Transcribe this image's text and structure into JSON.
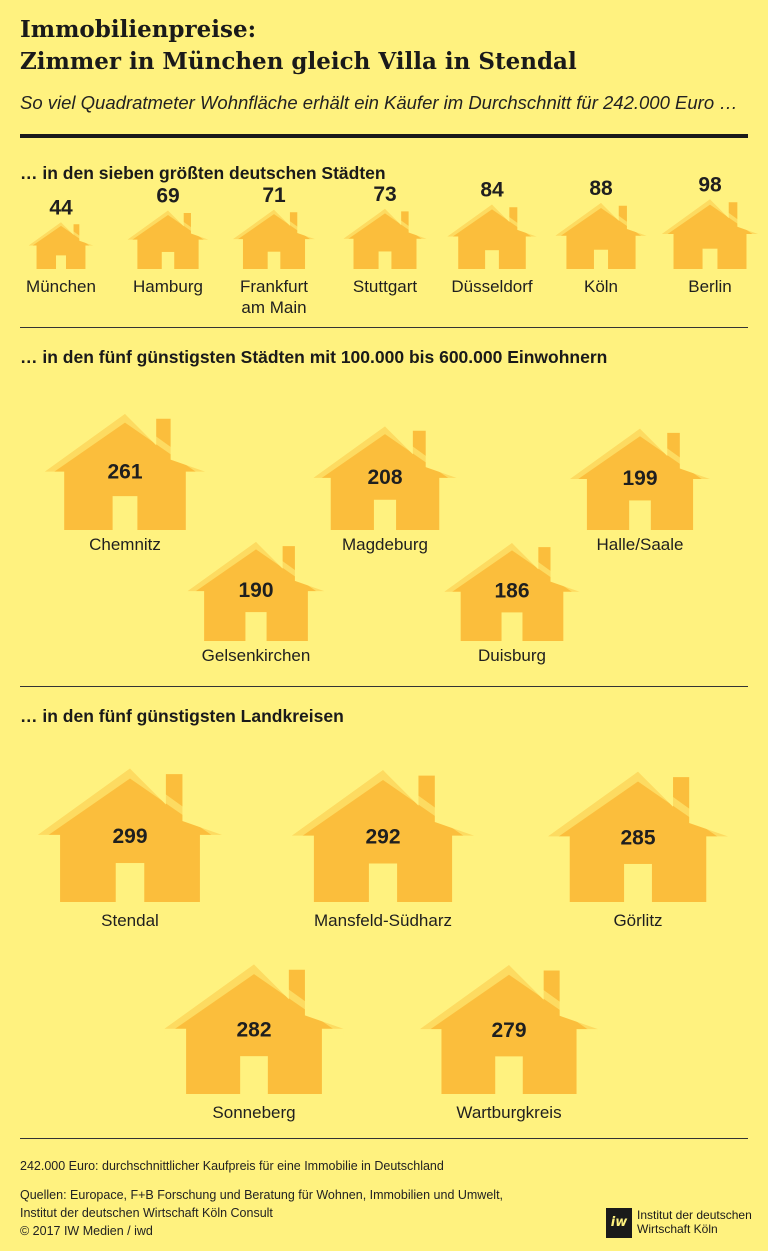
{
  "header": {
    "title_line1": "Immobilienpreise:",
    "title_line2": "Zimmer in München gleich Villa in Stendal",
    "subtitle": "So viel Quadratmeter Wohnfläche erhält ein Käufer im Durchschnitt für 242.000 Euro …"
  },
  "colors": {
    "background": "#fff27f",
    "house_fill": "#fbbe3c",
    "text": "#1f1f1f"
  },
  "chart_data": {
    "type": "pictogram",
    "unit": "Quadratmeter Wohnfläche",
    "groups": [
      {
        "title": "… in den sieben größten deutschen Städten",
        "categories": [
          "München",
          "Hamburg",
          "Frankfurt am Main",
          "Stuttgart",
          "Düsseldorf",
          "Köln",
          "Berlin"
        ],
        "values": [
          44,
          69,
          71,
          73,
          84,
          88,
          98
        ]
      },
      {
        "title": "… in den fünf günstigsten Städten mit 100.000 bis 600.000 Einwohnern",
        "categories": [
          "Chemnitz",
          "Magdeburg",
          "Halle/Saale",
          "Gelsenkirchen",
          "Duisburg"
        ],
        "values": [
          261,
          208,
          199,
          190,
          186
        ]
      },
      {
        "title": "… in den fünf günstigsten Landkreisen",
        "categories": [
          "Stendal",
          "Mansfeld-Südharz",
          "Görlitz",
          "Sonneberg",
          "Wartburgkreis"
        ],
        "values": [
          299,
          292,
          285,
          282,
          279
        ]
      }
    ]
  },
  "footer": {
    "note": "242.000 Euro: durchschnittlicher Kaufpreis für eine Immobilie in Deutschland",
    "sources_line1": "Quellen: Europace, F+B Forschung und Beratung für Wohnen, Immobilien und Umwelt,",
    "sources_line2": "Institut der deutschen Wirtschaft Köln Consult",
    "copyright": "© 2017 IW Medien / iwd",
    "logo_mark": "iw",
    "logo_line1": "Institut der deutschen",
    "logo_line2": "Wirtschaft Köln"
  }
}
